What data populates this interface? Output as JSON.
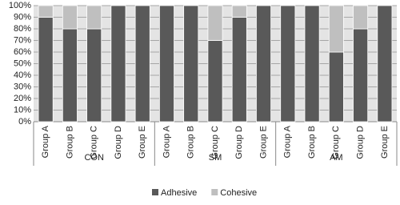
{
  "chart_data": {
    "type": "stacked-bar",
    "groups": [
      {
        "name": "CON",
        "categories": [
          "Group A",
          "Group B",
          "Group C",
          "Group D",
          "Group E"
        ]
      },
      {
        "name": "SM",
        "categories": [
          "Group A",
          "Group B",
          "Group C",
          "Group D",
          "Group E"
        ]
      },
      {
        "name": "AM",
        "categories": [
          "Group A",
          "Group B",
          "Group C",
          "Group D",
          "Group E"
        ]
      }
    ],
    "series": [
      {
        "name": "Adhesive",
        "color": "#595959",
        "values": [
          90,
          80,
          80,
          100,
          100,
          100,
          100,
          70,
          90,
          100,
          100,
          100,
          60,
          80,
          100
        ]
      },
      {
        "name": "Cohesive",
        "color": "#bfbfbf",
        "values": [
          10,
          20,
          20,
          0,
          0,
          0,
          0,
          30,
          10,
          0,
          0,
          0,
          40,
          20,
          0
        ]
      }
    ],
    "ylim": [
      0,
      100
    ],
    "yticks": [
      {
        "value": 0,
        "label": "0%"
      },
      {
        "value": 10,
        "label": "10%"
      },
      {
        "value": 20,
        "label": "20%"
      },
      {
        "value": 30,
        "label": "30%"
      },
      {
        "value": 40,
        "label": "40%"
      },
      {
        "value": 50,
        "label": "50%"
      },
      {
        "value": 60,
        "label": "60%"
      },
      {
        "value": 70,
        "label": "70%"
      },
      {
        "value": 80,
        "label": "80%"
      },
      {
        "value": 90,
        "label": "90%"
      },
      {
        "value": 100,
        "label": "100%"
      }
    ],
    "grid": true,
    "legend": "bottom"
  }
}
